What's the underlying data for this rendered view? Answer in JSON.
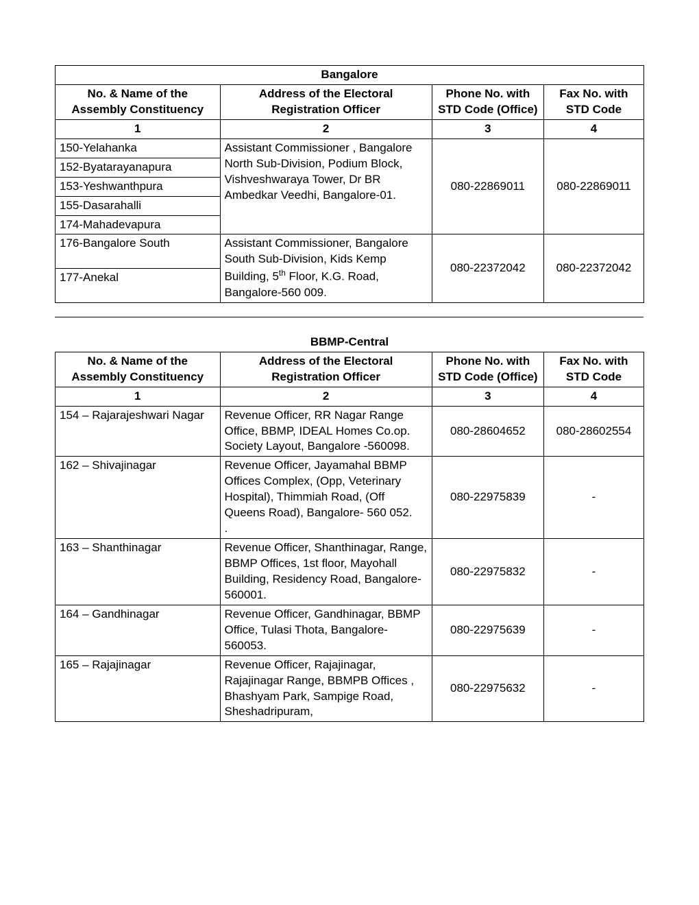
{
  "tables": [
    {
      "title": "Bangalore",
      "headers": {
        "col1": "No. & Name of the Assembly Constituency",
        "col2": "Address of the Electoral Registration Officer",
        "col3": "Phone No. with STD Code (Office)",
        "col4": "Fax No. with STD Code"
      },
      "colnums": {
        "c1": "1",
        "c2": "2",
        "c3": "3",
        "c4": "4"
      },
      "rows": [
        {
          "constituencies": [
            "150-Yelahanka",
            "152-Byatarayanapura",
            "153-Yeshwanthpura",
            "155-Dasarahalli",
            "174-Mahadevapura"
          ],
          "address": "Assistant Commissioner , Bangalore North Sub-Division, Podium Block, Vishveshwaraya Tower, Dr BR Ambedkar Veedhi,  Bangalore-01.",
          "phone": "080-22869011",
          "fax": "080-22869011"
        },
        {
          "constituencies": [
            "176-Bangalore South",
            "177-Anekal"
          ],
          "address_html": "Assistant Commissioner, Bangalore South Sub-Division, Kids Kemp Building, 5<sup>th</sup> Floor, K.G. Road, Bangalore-560 009.",
          "phone": "080-22372042",
          "fax": "080-22372042"
        }
      ]
    },
    {
      "title": "BBMP-Central",
      "headers": {
        "col1": "No. & Name of the Assembly Constituency",
        "col2": "Address of the Electoral Registration Officer",
        "col3": "Phone No. with STD Code (Office)",
        "col4": "Fax No. with STD Code"
      },
      "colnums": {
        "c1": "1",
        "c2": "2",
        "c3": "3",
        "c4": "4"
      },
      "simple_rows": [
        {
          "constituency": "154 – Rajarajeshwari Nagar",
          "address": "Revenue Officer, RR Nagar Range Office,  BBMP, IDEAL Homes Co.op. Society Layout, Bangalore -560098.",
          "phone": "080-28604652",
          "fax": "080-28602554"
        },
        {
          "constituency": "162 – Shivajinagar",
          "address": "Revenue Officer,  Jayamahal BBMP Offices  Complex, (Opp, Veterinary Hospital), Thimmiah Road, (Off Queens Road), Bangalore- 560 052.\n.",
          "phone": "080-22975839",
          "fax": "-"
        },
        {
          "constituency": "163 – Shanthinagar",
          "address": "Revenue Officer, Shanthinagar, Range, BBMP Offices, 1st floor, Mayohall Building, Residency Road, Bangalore-560001.\n ",
          "phone": "080-22975832",
          "fax": "-"
        },
        {
          "constituency": "164 – Gandhinagar",
          "address": "Revenue Officer, Gandhinagar, BBMP Office, Tulasi Thota, Bangalore-560053.\n ",
          "phone": "080-22975639",
          "fax": "-"
        },
        {
          "constituency": "165 – Rajajinagar",
          "address": "Revenue Officer, Rajajinagar, Rajajinagar Range, BBMPB Offices , Bhashyam Park, Sampige Road, Sheshadripuram,",
          "phone": "080-22975632",
          "fax": "-"
        }
      ]
    }
  ],
  "style": {
    "font_family": "Arial",
    "font_size_pt": 13,
    "border_color": "#000000",
    "background_color": "#ffffff",
    "text_color": "#000000",
    "col_widths_pct": [
      28,
      36,
      19,
      17
    ]
  }
}
